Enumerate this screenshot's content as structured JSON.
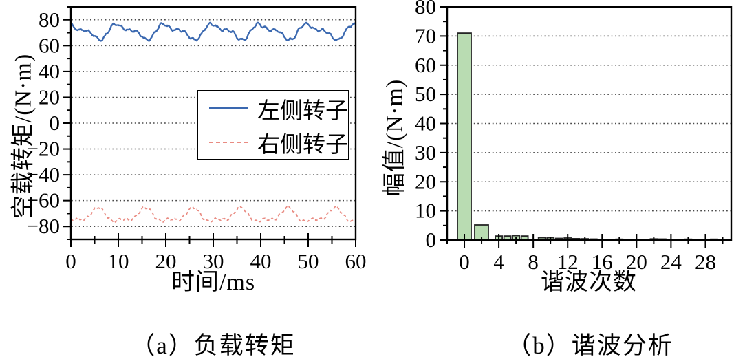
{
  "page": {
    "background": "#ffffff"
  },
  "colors": {
    "frame": "#000000",
    "grid": "#4a4a4a",
    "text": "#000000",
    "left_rotor_line": "#3a68b0",
    "right_rotor_line": "#e98b82",
    "bar_fill": "#b9dcb2",
    "bar_edge": "#262626"
  },
  "chart_data": [
    {
      "type": "line",
      "title": "（a）负载转矩",
      "xlabel": "时间/ms",
      "ylabel": "空载转矩/(N·m)",
      "xlim": [
        0,
        60
      ],
      "ylim": [
        -90,
        90
      ],
      "x_ticks": [
        0,
        10,
        20,
        30,
        40,
        50,
        60
      ],
      "x_minor_step": 5,
      "y_ticks": [
        -80,
        -60,
        -40,
        -20,
        0,
        20,
        40,
        60,
        80
      ],
      "y_minor_step": 10,
      "grid": "dotted-horizontal-at-major-y",
      "legend_position": "center-right",
      "sample_step_ms": 0.1,
      "noise_seed": 20240501,
      "series": [
        {
          "name": "左侧转子",
          "color": "#3a68b0",
          "line_style": "solid",
          "mean": 71,
          "ripple": [
            {
              "period_ms": 10,
              "amp": 4.8,
              "phase": 1.25
            },
            {
              "period_ms": 5,
              "amp": 2.3,
              "phase": 2.9
            },
            {
              "period_ms": 1.7,
              "amp": 0.9,
              "phase": 0.4
            }
          ],
          "noise_amp": 0.45,
          "approx_range": [
            62,
            79
          ]
        },
        {
          "name": "右侧转子",
          "color": "#e98b82",
          "line_style": "dashed",
          "mean": -72,
          "ripple": [
            {
              "period_ms": 10,
              "amp": 4.6,
              "phase": 4.35
            },
            {
              "period_ms": 5,
              "amp": 2.2,
              "phase": 0.55
            },
            {
              "period_ms": 1.7,
              "amp": 0.85,
              "phase": 2.1
            }
          ],
          "noise_amp": 0.45,
          "approx_range": [
            -79,
            -62
          ]
        }
      ]
    },
    {
      "type": "bar",
      "title": "（b）谐波分析",
      "xlabel": "谐波次数",
      "ylabel": "幅值/(N·m)",
      "xlim": [
        -2,
        31
      ],
      "ylim": [
        0,
        80
      ],
      "x_ticks": [
        0,
        4,
        8,
        12,
        16,
        20,
        24,
        28
      ],
      "x_minor_step": 2,
      "y_ticks": [
        0,
        10,
        20,
        30,
        40,
        50,
        60,
        70,
        80
      ],
      "y_minor_step": 5,
      "grid": "dotted-horizontal-at-major-y",
      "bar_fill": "#b9dcb2",
      "bar_edge": "#262626",
      "bars": [
        {
          "harmonic": 0,
          "value": 71,
          "width": 1.6
        },
        {
          "harmonic": 2,
          "value": 5.2,
          "width": 1.6
        },
        {
          "harmonic": 4,
          "value": 1.4,
          "width": 0.8
        },
        {
          "harmonic": 5,
          "value": 1.4,
          "width": 0.8
        },
        {
          "harmonic": 6,
          "value": 1.5,
          "width": 0.8
        },
        {
          "harmonic": 7,
          "value": 1.4,
          "width": 0.8
        },
        {
          "harmonic": 9,
          "value": 0.8,
          "width": 0.8
        },
        {
          "harmonic": 10,
          "value": 0.8,
          "width": 0.8
        },
        {
          "harmonic": 11,
          "value": 0.6,
          "width": 0.8
        },
        {
          "harmonic": 12,
          "value": 0.7,
          "width": 0.8
        },
        {
          "harmonic": 13,
          "value": 0.5,
          "width": 0.8
        },
        {
          "harmonic": 14,
          "value": 0.45,
          "width": 0.8
        },
        {
          "harmonic": 15,
          "value": 0.35,
          "width": 0.8
        },
        {
          "harmonic": 18,
          "value": 0.3,
          "width": 0.8
        },
        {
          "harmonic": 19,
          "value": 0.25,
          "width": 0.8
        },
        {
          "harmonic": 22,
          "value": 0.4,
          "width": 0.8
        },
        {
          "harmonic": 23,
          "value": 0.35,
          "width": 0.8
        },
        {
          "harmonic": 26,
          "value": 0.3,
          "width": 0.8
        },
        {
          "harmonic": 27,
          "value": 0.25,
          "width": 0.8
        },
        {
          "harmonic": 29,
          "value": 0.3,
          "width": 0.8
        }
      ]
    }
  ],
  "layout_note": "two sub-figures side by side"
}
